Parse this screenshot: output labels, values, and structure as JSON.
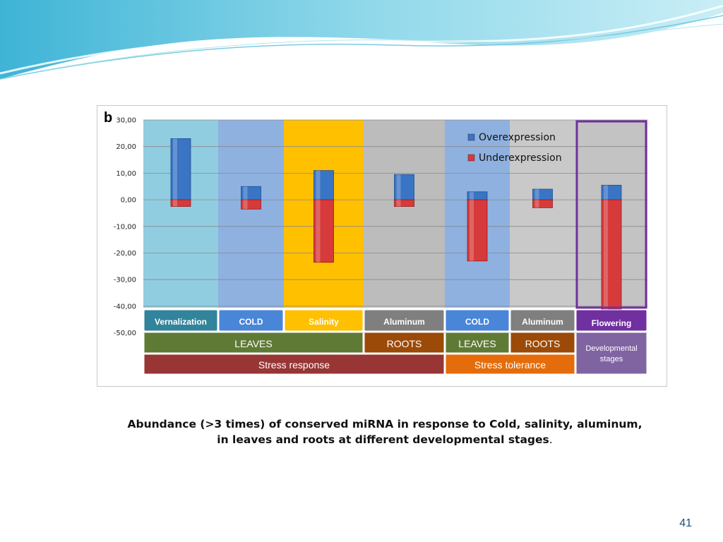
{
  "slide": {
    "panel_letter": "b",
    "caption_line1": "Abundance (>3 times) of conserved miRNA in response to Cold, salinity, aluminum,",
    "caption_line2": "in leaves and roots at different developmental stages",
    "caption_end": ".",
    "page_number": "41"
  },
  "chart_data": {
    "type": "bar",
    "title": "",
    "xlabel": "",
    "ylabel": "",
    "ylim": [
      -50,
      30
    ],
    "yticks": [
      "30,00",
      "20,00",
      "10,00",
      "0,00",
      "-10,00",
      "-20,00",
      "-30,00",
      "-40,00",
      "-50,00"
    ],
    "ytick_values": [
      30,
      20,
      10,
      0,
      -10,
      -20,
      -30,
      -40,
      -50
    ],
    "grid": true,
    "legend_position": "top-right",
    "categories": [
      "Vernalization",
      "COLD",
      "Salinity",
      "Aluminum",
      "COLD",
      "Aluminum",
      "Flowering"
    ],
    "series": [
      {
        "name": "Overexpression",
        "color": "#3a74c4",
        "values": [
          23,
          5,
          11,
          9.5,
          3,
          4,
          5.5
        ]
      },
      {
        "name": "Underexpression",
        "color": "#d63a3a",
        "values": [
          -2.5,
          -3.5,
          -23.5,
          -2.5,
          -23,
          -3,
          -42
        ]
      }
    ],
    "category_backgrounds": [
      "#91cde0",
      "#8eb1e0",
      "#ffc000",
      "#bcbcbc",
      "#8eb1e0",
      "#c9c9c9",
      "#c3c3c3"
    ],
    "category_label_colors": [
      "#31849b",
      "#4a86d8",
      "#ffc000",
      "#7f7f7f",
      "#4a86d8",
      "#7f7f7f",
      "#7030a0"
    ],
    "highlight_category": "Flowering",
    "highlight_color": "#7030a0",
    "tissue_row": [
      {
        "label": "LEAVES",
        "color": "#5f7a35",
        "start": 0,
        "end": 3
      },
      {
        "label": "ROOTS",
        "color": "#9c4a08",
        "start": 3,
        "end": 4
      },
      {
        "label": "LEAVES",
        "color": "#5f7a35",
        "start": 4,
        "end": 5
      },
      {
        "label": "ROOTS",
        "color": "#9c4a08",
        "start": 5,
        "end": 6
      }
    ],
    "group_row": [
      {
        "label": "Stress response",
        "color": "#983535",
        "start": 0,
        "end": 4
      },
      {
        "label": "Stress tolerance",
        "color": "#e56c0a",
        "start": 4,
        "end": 6
      }
    ],
    "developmental_label": [
      "Developmental",
      "stages"
    ],
    "developmental_color": "#8064a2"
  }
}
